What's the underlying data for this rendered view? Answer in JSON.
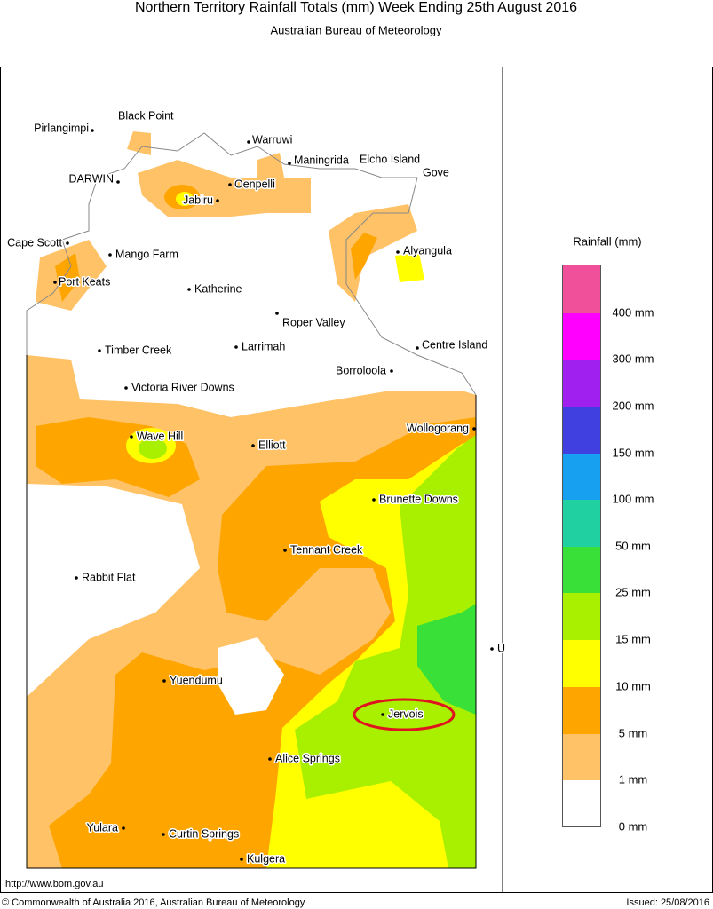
{
  "header": {
    "title": "Northern Territory Rainfall Totals (mm)  Week Ending 25th August 2016",
    "subtitle": "Australian Bureau of Meteorology"
  },
  "places": [
    "Black Point",
    "Pirlangimpi",
    "Warruwi",
    "Maningrida",
    "Elcho Island",
    "Gove",
    "DARWIN",
    "Oenpelli",
    "Jabiru",
    "Cape Scott",
    "Mango Farm",
    "Alyangula",
    "Port Keats",
    "Katherine",
    "Roper Valley",
    "Timber Creek",
    "Larrimah",
    "Centre Island",
    "Borroloola",
    "Victoria River Downs",
    "Wave Hill",
    "Elliott",
    "Wollogorang",
    "Brunette Downs",
    "Tennant Creek",
    "Rabbit Flat",
    "Yuendumu",
    "U",
    "Jervois",
    "Alice Springs",
    "Yulara",
    "Curtin Springs",
    "Kulgera"
  ],
  "legend": {
    "title": "Rainfall (mm)",
    "labels": [
      "400 mm",
      "300 mm",
      "200 mm",
      "150 mm",
      "100 mm",
      "50 mm",
      "25 mm",
      "15 mm",
      "10 mm",
      "5 mm",
      "1 mm",
      "0 mm"
    ]
  },
  "footer": {
    "url": "http://www.bom.gov.au",
    "copyright": "© Commonwealth of Australia 2016, Australian Bureau of Meteorology",
    "issued": "Issued: 25/08/2016"
  }
}
